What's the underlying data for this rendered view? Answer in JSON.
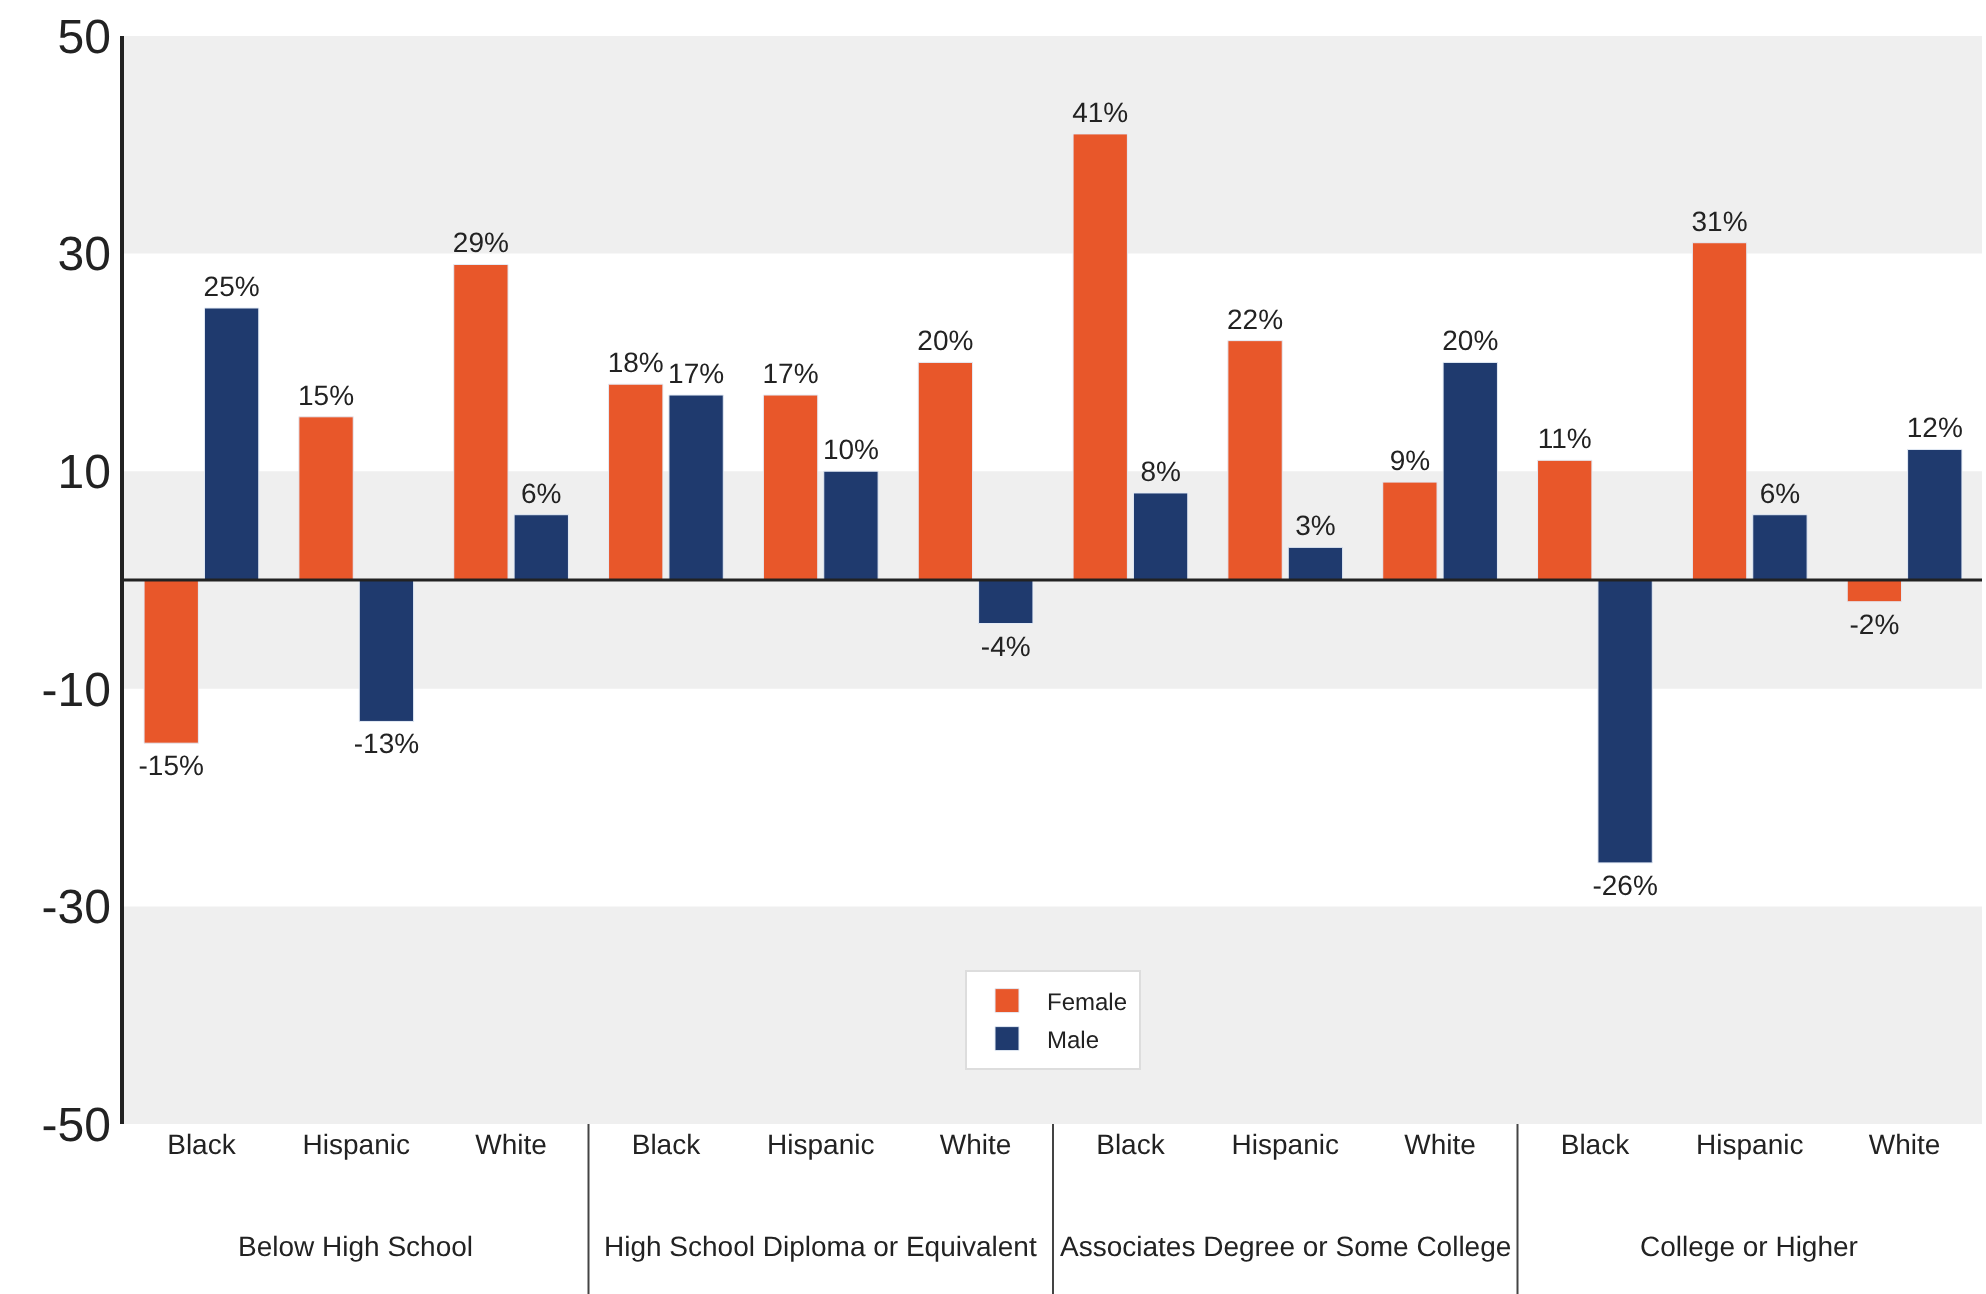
{
  "chart_data": {
    "type": "bar",
    "categories": [
      "Black",
      "Hispanic",
      "White",
      "Black",
      "Hispanic",
      "White",
      "Black",
      "Hispanic",
      "White",
      "Black",
      "Hispanic",
      "White"
    ],
    "annotations": [
      "Below High School",
      "High School Diploma or Equivalent",
      "Associates Degree or Some College",
      "College or Higher"
    ],
    "series": [
      {
        "name": "Female",
        "color": "#e8572a",
        "values": [
          -15,
          15,
          29,
          18,
          17,
          20,
          41,
          22,
          9,
          11,
          31,
          -2
        ],
        "value_labels": [
          "-15%",
          "15%",
          "29%",
          "18%",
          "17%",
          "20%",
          "41%",
          "22%",
          "9%",
          "11%",
          "31%",
          "-2%"
        ]
      },
      {
        "name": "Male",
        "color": "#1f3a6e",
        "values": [
          25,
          -13,
          6,
          17,
          10,
          -4,
          8,
          3,
          20,
          -26,
          6,
          12
        ],
        "value_labels": [
          "25%",
          "-13%",
          "6%",
          "17%",
          "10%",
          "-4%",
          "8%",
          "3%",
          "20%",
          "-26%",
          "6%",
          "12%"
        ]
      }
    ],
    "ylim": [
      -50,
      50
    ],
    "yticks": [
      -50,
      -30,
      -10,
      10,
      30,
      50
    ],
    "bands": [
      {
        "axis": "y",
        "from": 30,
        "to": 50,
        "color": "#efefef"
      },
      {
        "axis": "y",
        "from": -10,
        "to": 10,
        "color": "#efefef"
      },
      {
        "axis": "y",
        "from": -50,
        "to": -30,
        "color": "#efefef"
      }
    ],
    "grid": false,
    "legend": "bottom"
  }
}
